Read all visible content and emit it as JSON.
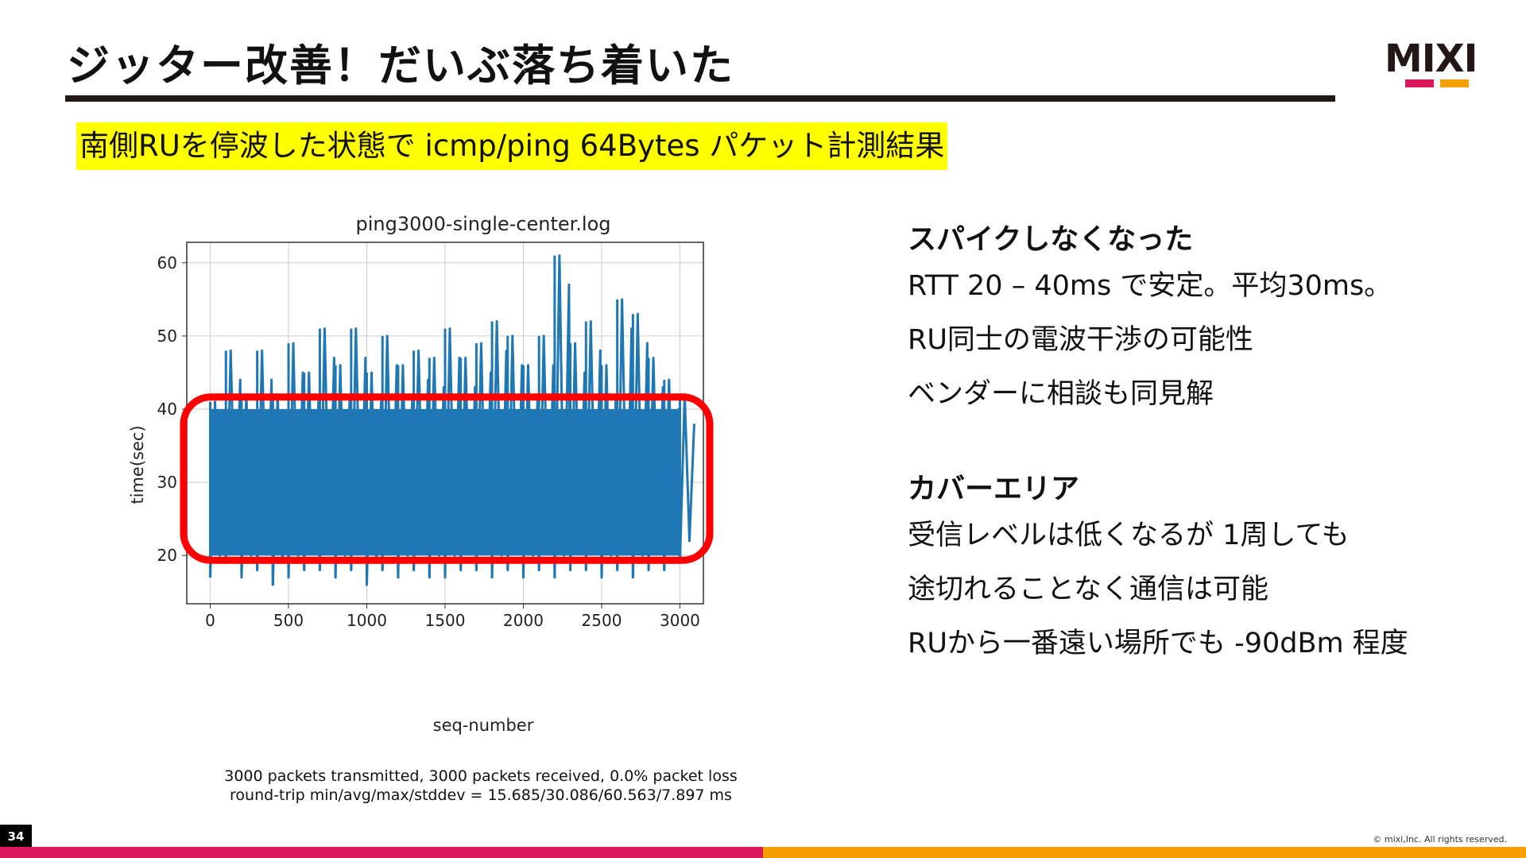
{
  "slide": {
    "title": "ジッター改善！だいぶ落ち着いた",
    "subtitle": "南側RUを停波した状態で icmp/ping 64Bytes パケット計測結果",
    "page_number": "34",
    "copyright": "© mixi,Inc. All rights reserved.",
    "logo_text": "MIXI"
  },
  "colors": {
    "brand_pink": "#d9195c",
    "brand_orange": "#f5a000",
    "highlight": "#ffff00",
    "series": "#1f77b4",
    "annotation_box": "#ff0000"
  },
  "stats": {
    "line1": "3000 packets transmitted, 3000 packets received, 0.0% packet loss",
    "line2": "round-trip min/avg/max/stddev = 15.685/30.086/60.563/7.897 ms"
  },
  "sections": [
    {
      "heading": "スパイクしなくなった",
      "lines": [
        "RTT 20 – 40ms で安定。平均30ms。",
        "RU同士の電波干渉の可能性",
        "ベンダーに相談も同見解"
      ]
    },
    {
      "heading": "カバーエリア",
      "lines": [
        "受信レベルは低くなるが 1周しても",
        "途切れることなく通信は可能",
        "RUから一番遠い場所でも -90dBm 程度"
      ]
    }
  ],
  "chart_data": {
    "type": "line",
    "title": "ping3000-single-center.log",
    "xlabel": "seq-number",
    "ylabel": "time(sec)",
    "xlim": [
      -150,
      3150
    ],
    "ylim": [
      13.4,
      62.8
    ],
    "xticks": [
      0,
      500,
      1000,
      1500,
      2000,
      2500,
      3000
    ],
    "yticks": [
      20,
      30,
      40,
      50,
      60
    ],
    "grid": true,
    "series": [
      {
        "x": [
          0,
          100,
          200,
          300,
          400,
          500,
          600,
          700,
          800,
          900,
          1000,
          1100,
          1200,
          1300,
          1400,
          1500,
          1600,
          1700,
          1800,
          1900,
          2000,
          2100,
          2200,
          2300,
          2400,
          2500,
          2600,
          2700,
          2800,
          2900,
          3000
        ],
        "y_min": [
          17,
          19,
          17,
          18,
          16,
          17,
          18,
          18,
          17,
          18,
          16,
          18,
          17,
          18,
          17,
          17,
          18,
          18,
          17,
          18,
          17,
          18,
          17,
          18,
          18,
          17,
          18,
          17,
          18,
          18,
          19
        ],
        "y_max": [
          41,
          48,
          42,
          48,
          42,
          49,
          45,
          51,
          46,
          51,
          45,
          50,
          46,
          48,
          47,
          51,
          47,
          49,
          52,
          50,
          46,
          50,
          61,
          49,
          52,
          46,
          55,
          53,
          47,
          44,
          42
        ],
        "y_band_low": [
          20,
          20,
          20,
          20,
          20,
          20,
          20,
          20,
          20,
          20,
          20,
          20,
          20,
          20,
          20,
          20,
          20,
          20,
          20,
          20,
          20,
          20,
          20,
          20,
          20,
          20,
          20,
          20,
          20,
          20,
          20
        ],
        "y_band_high": [
          40,
          40,
          40,
          40,
          40,
          40,
          40,
          40,
          40,
          40,
          40,
          40,
          40,
          40,
          40,
          40,
          40,
          40,
          40,
          40,
          40,
          40,
          40,
          40,
          40,
          40,
          40,
          40,
          40,
          40,
          40
        ]
      }
    ],
    "annotation": {
      "type": "highlight-box",
      "x_range": [
        -150,
        3150
      ],
      "y_range": [
        20,
        41
      ]
    }
  }
}
